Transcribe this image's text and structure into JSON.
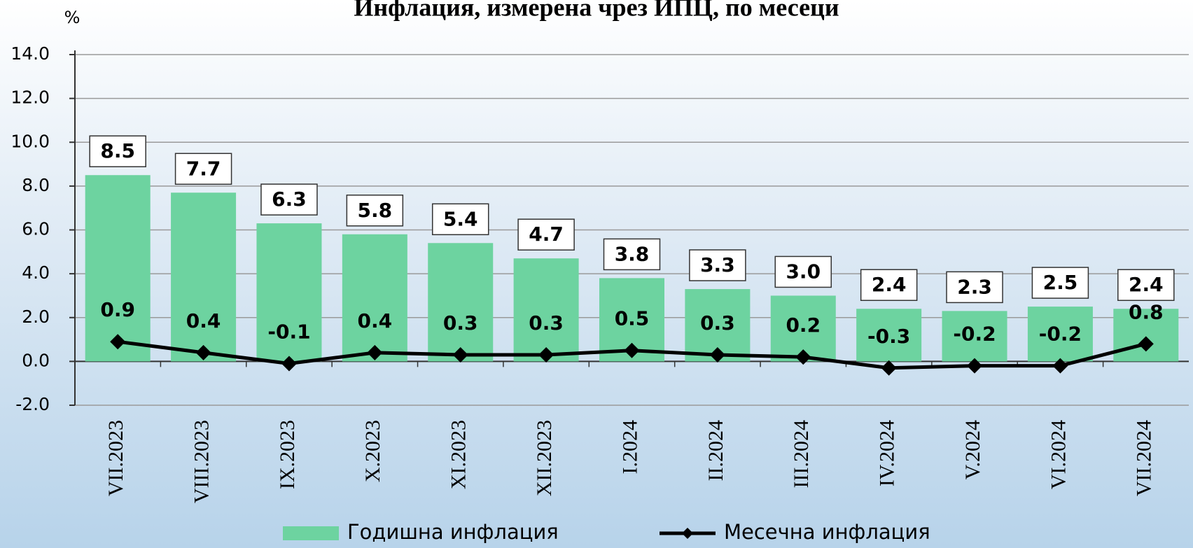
{
  "chart_data": {
    "type": "bar_line",
    "title": "Инфлация, измерена чрез ИПЦ, по месеци",
    "y_unit": "%",
    "categories": [
      "VII.2023",
      "VIII.2023",
      "IX.2023",
      "X.2023",
      "XI.2023",
      "XII.2023",
      "I.2024",
      "II.2024",
      "III.2024",
      "IV.2024",
      "V.2024",
      "VI.2024",
      "VII.2024"
    ],
    "series": [
      {
        "name": "Годишна инфлация",
        "type": "bar",
        "color": "#6dd3a0",
        "values": [
          8.5,
          7.7,
          6.3,
          5.8,
          5.4,
          4.7,
          3.8,
          3.3,
          3.0,
          2.4,
          2.3,
          2.5,
          2.4
        ],
        "value_labels": [
          "8.5",
          "7.7",
          "6.3",
          "5.8",
          "5.4",
          "4.7",
          "3.8",
          "3.3",
          "3.0",
          "2.4",
          "2.3",
          "2.5",
          "2.4"
        ]
      },
      {
        "name": "Месечна инфлация",
        "type": "line",
        "color": "#000000",
        "values": [
          0.9,
          0.4,
          -0.1,
          0.4,
          0.3,
          0.3,
          0.5,
          0.3,
          0.2,
          -0.3,
          -0.2,
          -0.2,
          0.8
        ],
        "value_labels": [
          "0.9",
          "0.4",
          "-0.1",
          "0.4",
          "0.3",
          "0.3",
          "0.5",
          "0.3",
          "0.2",
          "-0.3",
          "-0.2",
          "-0.2",
          "0.8"
        ]
      }
    ],
    "ylim": [
      -2,
      14
    ],
    "yticks": [
      {
        "value": -2,
        "label": "-2.0"
      },
      {
        "value": 0,
        "label": "0.0"
      },
      {
        "value": 2,
        "label": "2.0"
      },
      {
        "value": 4,
        "label": "4.0"
      },
      {
        "value": 6,
        "label": "6.0"
      },
      {
        "value": 8,
        "label": "8.0"
      },
      {
        "value": 10,
        "label": "10.0"
      },
      {
        "value": 12,
        "label": "12.0"
      },
      {
        "value": 14,
        "label": "14.0"
      }
    ],
    "grid": true
  }
}
